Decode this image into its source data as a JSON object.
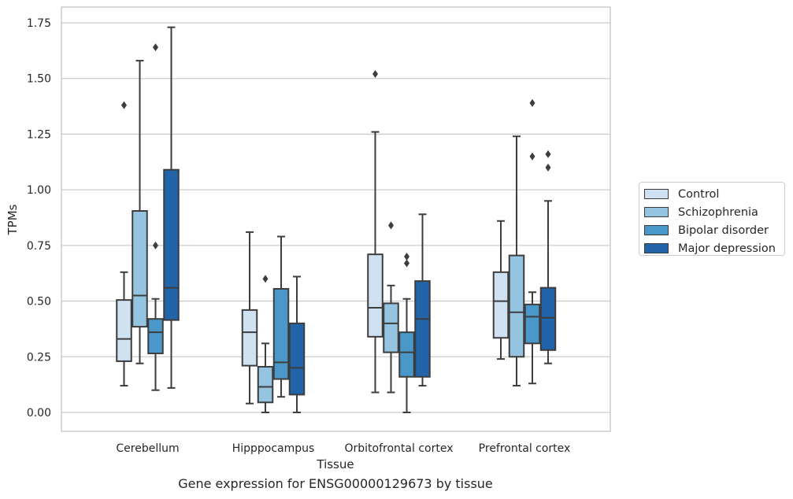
{
  "chart_data": {
    "type": "box",
    "xlabel": "Tissue",
    "ylabel": "TPMs",
    "caption": "Gene expression for ENSG00000129673 by tissue",
    "ylim": [
      -0.08,
      1.82
    ],
    "yticks": [
      0.0,
      0.25,
      0.5,
      0.75,
      1.0,
      1.25,
      1.5,
      1.75
    ],
    "ytick_labels": [
      "0.00",
      "0.25",
      "0.50",
      "0.75",
      "1.00",
      "1.25",
      "1.50",
      "1.75"
    ],
    "grid": "horizontal",
    "legend_position": "right",
    "categories": [
      "Cerebellum",
      "Hipppocampus",
      "Orbitofrontal cortex",
      "Prefrontal cortex"
    ],
    "series": [
      {
        "name": "Control",
        "color": "#d0e1f2",
        "boxes": [
          {
            "whislo": 0.12,
            "q1": 0.23,
            "med": 0.33,
            "q3": 0.505,
            "whishi": 0.63,
            "fliers": [
              1.38
            ]
          },
          {
            "whislo": 0.04,
            "q1": 0.21,
            "med": 0.36,
            "q3": 0.46,
            "whishi": 0.81,
            "fliers": []
          },
          {
            "whislo": 0.09,
            "q1": 0.34,
            "med": 0.47,
            "q3": 0.71,
            "whishi": 1.26,
            "fliers": [
              1.52
            ]
          },
          {
            "whislo": 0.24,
            "q1": 0.335,
            "med": 0.5,
            "q3": 0.63,
            "whishi": 0.86,
            "fliers": []
          }
        ]
      },
      {
        "name": "Schizophrenia",
        "color": "#94c4df",
        "boxes": [
          {
            "whislo": 0.22,
            "q1": 0.385,
            "med": 0.525,
            "q3": 0.905,
            "whishi": 1.58,
            "fliers": []
          },
          {
            "whislo": 0.0,
            "q1": 0.045,
            "med": 0.115,
            "q3": 0.205,
            "whishi": 0.31,
            "fliers": [
              0.6
            ]
          },
          {
            "whislo": 0.09,
            "q1": 0.27,
            "med": 0.4,
            "q3": 0.49,
            "whishi": 0.57,
            "fliers": [
              0.84
            ]
          },
          {
            "whislo": 0.12,
            "q1": 0.25,
            "med": 0.45,
            "q3": 0.705,
            "whishi": 1.24,
            "fliers": []
          }
        ]
      },
      {
        "name": "Bipolar disorder",
        "color": "#4a98c9",
        "boxes": [
          {
            "whislo": 0.1,
            "q1": 0.265,
            "med": 0.36,
            "q3": 0.42,
            "whishi": 0.51,
            "fliers": [
              0.75,
              1.64
            ]
          },
          {
            "whislo": 0.07,
            "q1": 0.15,
            "med": 0.225,
            "q3": 0.555,
            "whishi": 0.79,
            "fliers": []
          },
          {
            "whislo": 0.0,
            "q1": 0.16,
            "med": 0.27,
            "q3": 0.36,
            "whishi": 0.51,
            "fliers": [
              0.67,
              0.7
            ]
          },
          {
            "whislo": 0.13,
            "q1": 0.31,
            "med": 0.43,
            "q3": 0.485,
            "whishi": 0.54,
            "fliers": [
              1.15,
              1.39
            ]
          }
        ]
      },
      {
        "name": "Major depression",
        "color": "#2264aa",
        "boxes": [
          {
            "whislo": 0.11,
            "q1": 0.415,
            "med": 0.56,
            "q3": 1.09,
            "whishi": 1.73,
            "fliers": []
          },
          {
            "whislo": 0.0,
            "q1": 0.08,
            "med": 0.2,
            "q3": 0.4,
            "whishi": 0.61,
            "fliers": []
          },
          {
            "whislo": 0.12,
            "q1": 0.16,
            "med": 0.42,
            "q3": 0.59,
            "whishi": 0.89,
            "fliers": []
          },
          {
            "whislo": 0.22,
            "q1": 0.28,
            "med": 0.425,
            "q3": 0.56,
            "whishi": 0.95,
            "fliers": [
              1.1,
              1.16
            ]
          }
        ]
      }
    ]
  }
}
